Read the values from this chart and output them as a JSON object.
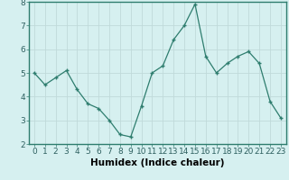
{
  "x": [
    0,
    1,
    2,
    3,
    4,
    5,
    6,
    7,
    8,
    9,
    10,
    11,
    12,
    13,
    14,
    15,
    16,
    17,
    18,
    19,
    20,
    21,
    22,
    23
  ],
  "y": [
    5.0,
    4.5,
    4.8,
    5.1,
    4.3,
    3.7,
    3.5,
    3.0,
    2.4,
    2.3,
    3.6,
    5.0,
    5.3,
    6.4,
    7.0,
    7.9,
    5.7,
    5.0,
    5.4,
    5.7,
    5.9,
    5.4,
    3.8,
    3.1
  ],
  "xlabel": "Humidex (Indice chaleur)",
  "ylim": [
    2,
    8
  ],
  "xlim": [
    -0.5,
    23.5
  ],
  "line_color": "#2e7d6e",
  "marker_color": "#2e7d6e",
  "bg_color": "#d6f0f0",
  "grid_color": "#c0dada",
  "tick_label_fontsize": 6.5,
  "xlabel_fontsize": 7.5,
  "ylabel_ticks": [
    2,
    3,
    4,
    5,
    6,
    7,
    8
  ],
  "xtick_labels": [
    "0",
    "1",
    "2",
    "3",
    "4",
    "5",
    "6",
    "7",
    "8",
    "9",
    "10",
    "11",
    "12",
    "13",
    "14",
    "15",
    "16",
    "17",
    "18",
    "19",
    "20",
    "21",
    "22",
    "23"
  ]
}
